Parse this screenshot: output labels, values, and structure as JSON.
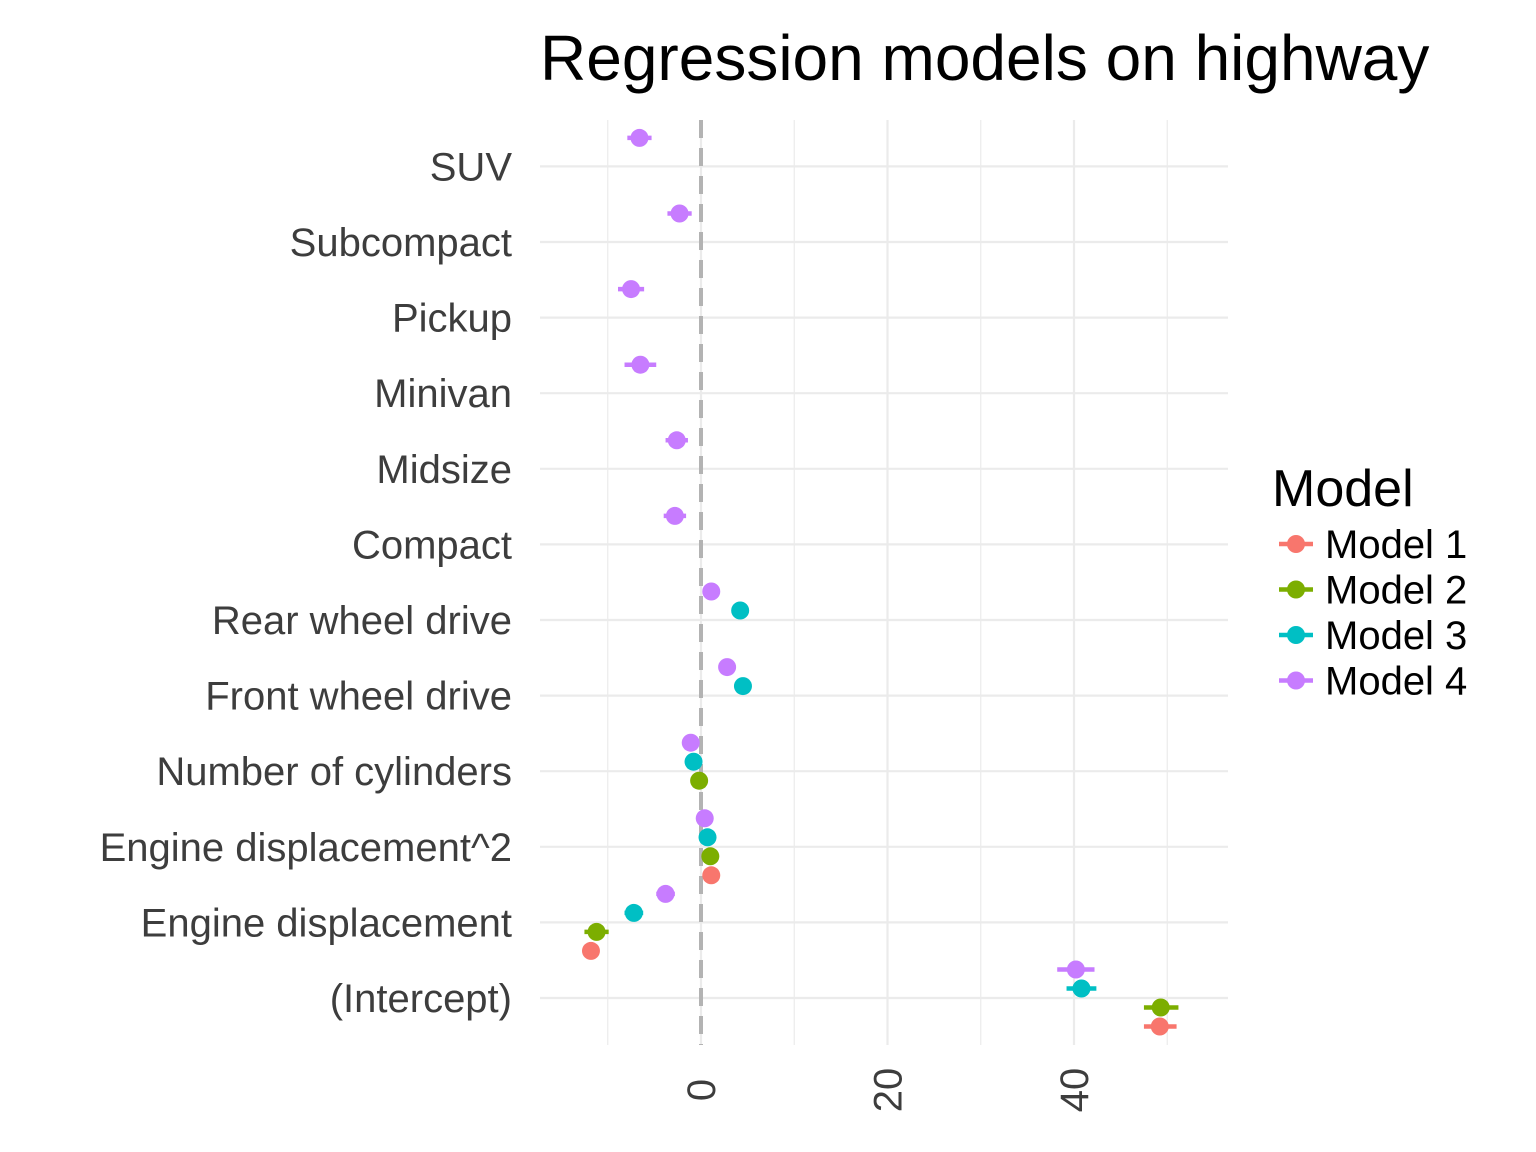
{
  "chart_data": {
    "type": "scatter",
    "title": "Regression models on highway",
    "xlabel": "",
    "ylabel": "",
    "xlim": [
      -35,
      56
    ],
    "x_ticks": [
      "0",
      "20",
      "40"
    ],
    "x_tick_values": [
      0,
      20,
      40
    ],
    "reference_line": 0,
    "grid": true,
    "legend": {
      "title": "Model",
      "position": "right"
    },
    "categories": [
      "(Intercept)",
      "Engine displacement",
      "Engine displacement^2",
      "Number of cylinders",
      "Front wheel drive",
      "Rear wheel drive",
      "Compact",
      "Midsize",
      "Minivan",
      "Pickup",
      "Subcompact",
      "SUV"
    ],
    "series": [
      {
        "name": "Model 1",
        "color": "#F8766D",
        "points": [
          {
            "category": "(Intercept)",
            "estimate": 49.2,
            "low": 47.5,
            "high": 51.0
          },
          {
            "category": "Engine displacement",
            "estimate": -11.8,
            "low": -12.4,
            "high": -11.2
          },
          {
            "category": "Engine displacement^2",
            "estimate": 1.1,
            "low": 0.9,
            "high": 1.3
          }
        ]
      },
      {
        "name": "Model 2",
        "color": "#7CAE00",
        "points": [
          {
            "category": "(Intercept)",
            "estimate": 49.3,
            "low": 47.5,
            "high": 51.2
          },
          {
            "category": "Engine displacement",
            "estimate": -11.2,
            "low": -12.5,
            "high": -9.9
          },
          {
            "category": "Engine displacement^2",
            "estimate": 1.0,
            "low": 0.8,
            "high": 1.2
          },
          {
            "category": "Number of cylinders",
            "estimate": -0.2,
            "low": -0.5,
            "high": 0.1
          }
        ]
      },
      {
        "name": "Model 3",
        "color": "#00BFC4",
        "points": [
          {
            "category": "(Intercept)",
            "estimate": 40.8,
            "low": 39.2,
            "high": 42.4
          },
          {
            "category": "Engine displacement",
            "estimate": -7.2,
            "low": -8.2,
            "high": -6.2
          },
          {
            "category": "Engine displacement^2",
            "estimate": 0.7,
            "low": 0.5,
            "high": 0.9
          },
          {
            "category": "Number of cylinders",
            "estimate": -0.8,
            "low": -1.1,
            "high": -0.5
          },
          {
            "category": "Front wheel drive",
            "estimate": 4.5,
            "low": 4.0,
            "high": 5.0
          },
          {
            "category": "Rear wheel drive",
            "estimate": 4.2,
            "low": 3.7,
            "high": 4.7
          }
        ]
      },
      {
        "name": "Model 4",
        "color": "#C77CFF",
        "points": [
          {
            "category": "(Intercept)",
            "estimate": 40.2,
            "low": 38.2,
            "high": 42.2
          },
          {
            "category": "Engine displacement",
            "estimate": -3.8,
            "low": -4.8,
            "high": -2.8
          },
          {
            "category": "Engine displacement^2",
            "estimate": 0.4,
            "low": 0.2,
            "high": 0.6
          },
          {
            "category": "Number of cylinders",
            "estimate": -1.1,
            "low": -1.4,
            "high": -0.8
          },
          {
            "category": "Front wheel drive",
            "estimate": 2.8,
            "low": 2.4,
            "high": 3.2
          },
          {
            "category": "Rear wheel drive",
            "estimate": 1.1,
            "low": 0.7,
            "high": 1.5
          },
          {
            "category": "Compact",
            "estimate": -2.8,
            "low": -4.0,
            "high": -1.6
          },
          {
            "category": "Midsize",
            "estimate": -2.6,
            "low": -3.8,
            "high": -1.4
          },
          {
            "category": "Minivan",
            "estimate": -6.5,
            "low": -8.2,
            "high": -4.8
          },
          {
            "category": "Pickup",
            "estimate": -7.5,
            "low": -8.9,
            "high": -6.1
          },
          {
            "category": "Subcompact",
            "estimate": -2.3,
            "low": -3.6,
            "high": -1.0
          },
          {
            "category": "SUV",
            "estimate": -6.6,
            "low": -7.9,
            "high": -5.3
          }
        ]
      }
    ]
  }
}
